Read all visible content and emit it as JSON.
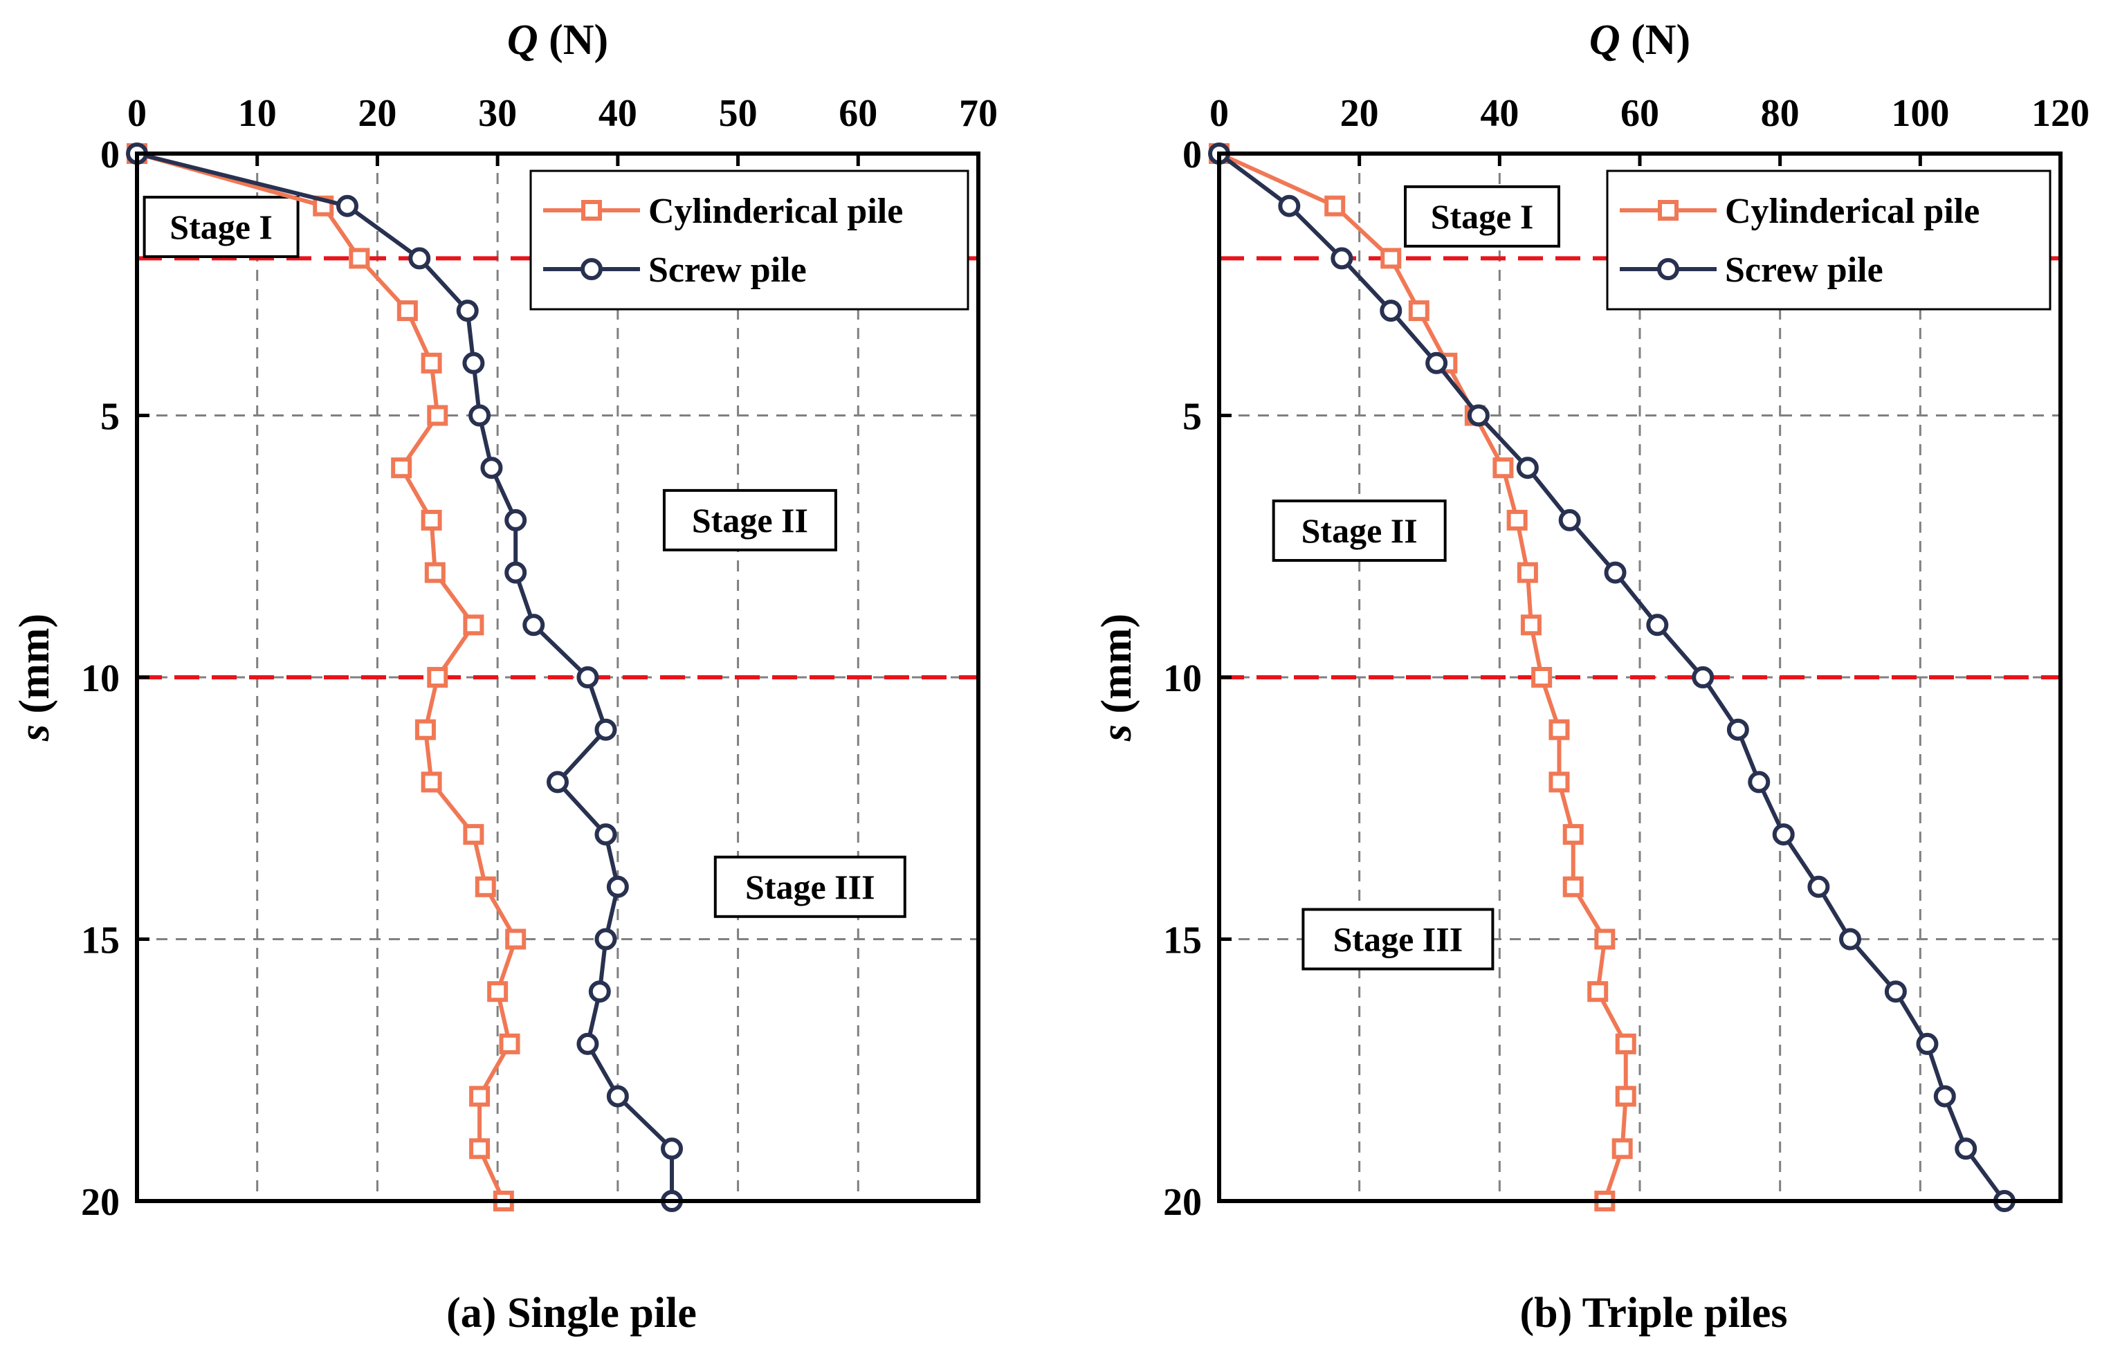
{
  "colors": {
    "cylindrical": "#F07855",
    "screw": "#283150",
    "stage_line": "#E8141B",
    "grid": "#808080",
    "axis": "#000000"
  },
  "chart_data": [
    {
      "type": "line",
      "panel_label": "(a) Single pile",
      "xlabel_var": "Q",
      "xlabel_unit": "(N)",
      "ylabel_var": "s",
      "ylabel_unit": "(mm)",
      "xlim": [
        0,
        70
      ],
      "ylim": [
        0,
        20
      ],
      "y_inverted": true,
      "x_axis_position": "top",
      "xticks": [
        0,
        10,
        20,
        30,
        40,
        50,
        60,
        70
      ],
      "yticks": [
        0,
        5,
        10,
        15,
        20
      ],
      "grid": true,
      "stage_lines": [
        2,
        10
      ],
      "stage_labels": [
        {
          "text": "Stage I",
          "x": 7,
          "y": 1.4
        },
        {
          "text": "Stage II",
          "x": 51,
          "y": 7.0
        },
        {
          "text": "Stage III",
          "x": 56,
          "y": 14.0
        }
      ],
      "legend_position": "top-right",
      "series": [
        {
          "name": "Cylinderical pile",
          "marker": "square",
          "color_key": "cylindrical",
          "points": [
            [
              0,
              0
            ],
            [
              15.5,
              1
            ],
            [
              18.5,
              2
            ],
            [
              22.5,
              3
            ],
            [
              24.5,
              4
            ],
            [
              25,
              5
            ],
            [
              22,
              6
            ],
            [
              24.5,
              7
            ],
            [
              24.8,
              8
            ],
            [
              28,
              9
            ],
            [
              25,
              10
            ],
            [
              24,
              11
            ],
            [
              24.5,
              12
            ],
            [
              28,
              13
            ],
            [
              29,
              14
            ],
            [
              31.5,
              15
            ],
            [
              30,
              16
            ],
            [
              31,
              17
            ],
            [
              28.5,
              18
            ],
            [
              28.5,
              19
            ],
            [
              30.5,
              20
            ]
          ]
        },
        {
          "name": "Screw pile",
          "marker": "circle",
          "color_key": "screw",
          "points": [
            [
              0,
              0
            ],
            [
              17.5,
              1
            ],
            [
              23.5,
              2
            ],
            [
              27.5,
              3
            ],
            [
              28,
              4
            ],
            [
              28.5,
              5
            ],
            [
              29.5,
              6
            ],
            [
              31.5,
              7
            ],
            [
              31.5,
              8
            ],
            [
              33,
              9
            ],
            [
              37.5,
              10
            ],
            [
              39,
              11
            ],
            [
              35,
              12
            ],
            [
              39,
              13
            ],
            [
              40,
              14
            ],
            [
              39,
              15
            ],
            [
              38.5,
              16
            ],
            [
              37.5,
              17
            ],
            [
              40,
              18
            ],
            [
              44.5,
              19
            ],
            [
              44.5,
              20
            ]
          ]
        }
      ]
    },
    {
      "type": "line",
      "panel_label": "(b) Triple piles",
      "xlabel_var": "Q",
      "xlabel_unit": "(N)",
      "ylabel_var": "s",
      "ylabel_unit": "(mm)",
      "xlim": [
        0,
        120
      ],
      "ylim": [
        0,
        20
      ],
      "y_inverted": true,
      "x_axis_position": "top",
      "xticks": [
        0,
        20,
        40,
        60,
        80,
        100,
        120
      ],
      "yticks": [
        0,
        5,
        10,
        15,
        20
      ],
      "grid": true,
      "stage_lines": [
        2,
        10
      ],
      "stage_labels": [
        {
          "text": "Stage I",
          "x": 37.5,
          "y": 1.2
        },
        {
          "text": "Stage II",
          "x": 20,
          "y": 7.2
        },
        {
          "text": "Stage III",
          "x": 25.5,
          "y": 15.0
        }
      ],
      "legend_position": "top-right",
      "series": [
        {
          "name": "Cylinderical pile",
          "marker": "square",
          "color_key": "cylindrical",
          "points": [
            [
              0,
              0
            ],
            [
              16.5,
              1
            ],
            [
              24.5,
              2
            ],
            [
              28.5,
              3
            ],
            [
              32.5,
              4
            ],
            [
              36.5,
              5
            ],
            [
              40.5,
              6
            ],
            [
              42.5,
              7
            ],
            [
              44,
              8
            ],
            [
              44.5,
              9
            ],
            [
              46,
              10
            ],
            [
              48.5,
              11
            ],
            [
              48.5,
              12
            ],
            [
              50.5,
              13
            ],
            [
              50.5,
              14
            ],
            [
              55,
              15
            ],
            [
              54,
              16
            ],
            [
              58,
              17
            ],
            [
              58,
              18
            ],
            [
              57.5,
              19
            ],
            [
              55,
              20
            ]
          ]
        },
        {
          "name": "Screw pile",
          "marker": "circle",
          "color_key": "screw",
          "points": [
            [
              0,
              0
            ],
            [
              10,
              1
            ],
            [
              17.5,
              2
            ],
            [
              24.5,
              3
            ],
            [
              31,
              4
            ],
            [
              37,
              5
            ],
            [
              44,
              6
            ],
            [
              50,
              7
            ],
            [
              56.5,
              8
            ],
            [
              62.5,
              9
            ],
            [
              69,
              10
            ],
            [
              74,
              11
            ],
            [
              77,
              12
            ],
            [
              80.5,
              13
            ],
            [
              85.5,
              14
            ],
            [
              90,
              15
            ],
            [
              96.5,
              16
            ],
            [
              101,
              17
            ],
            [
              103.5,
              18
            ],
            [
              106.5,
              19
            ],
            [
              112,
              20
            ]
          ]
        }
      ]
    }
  ]
}
